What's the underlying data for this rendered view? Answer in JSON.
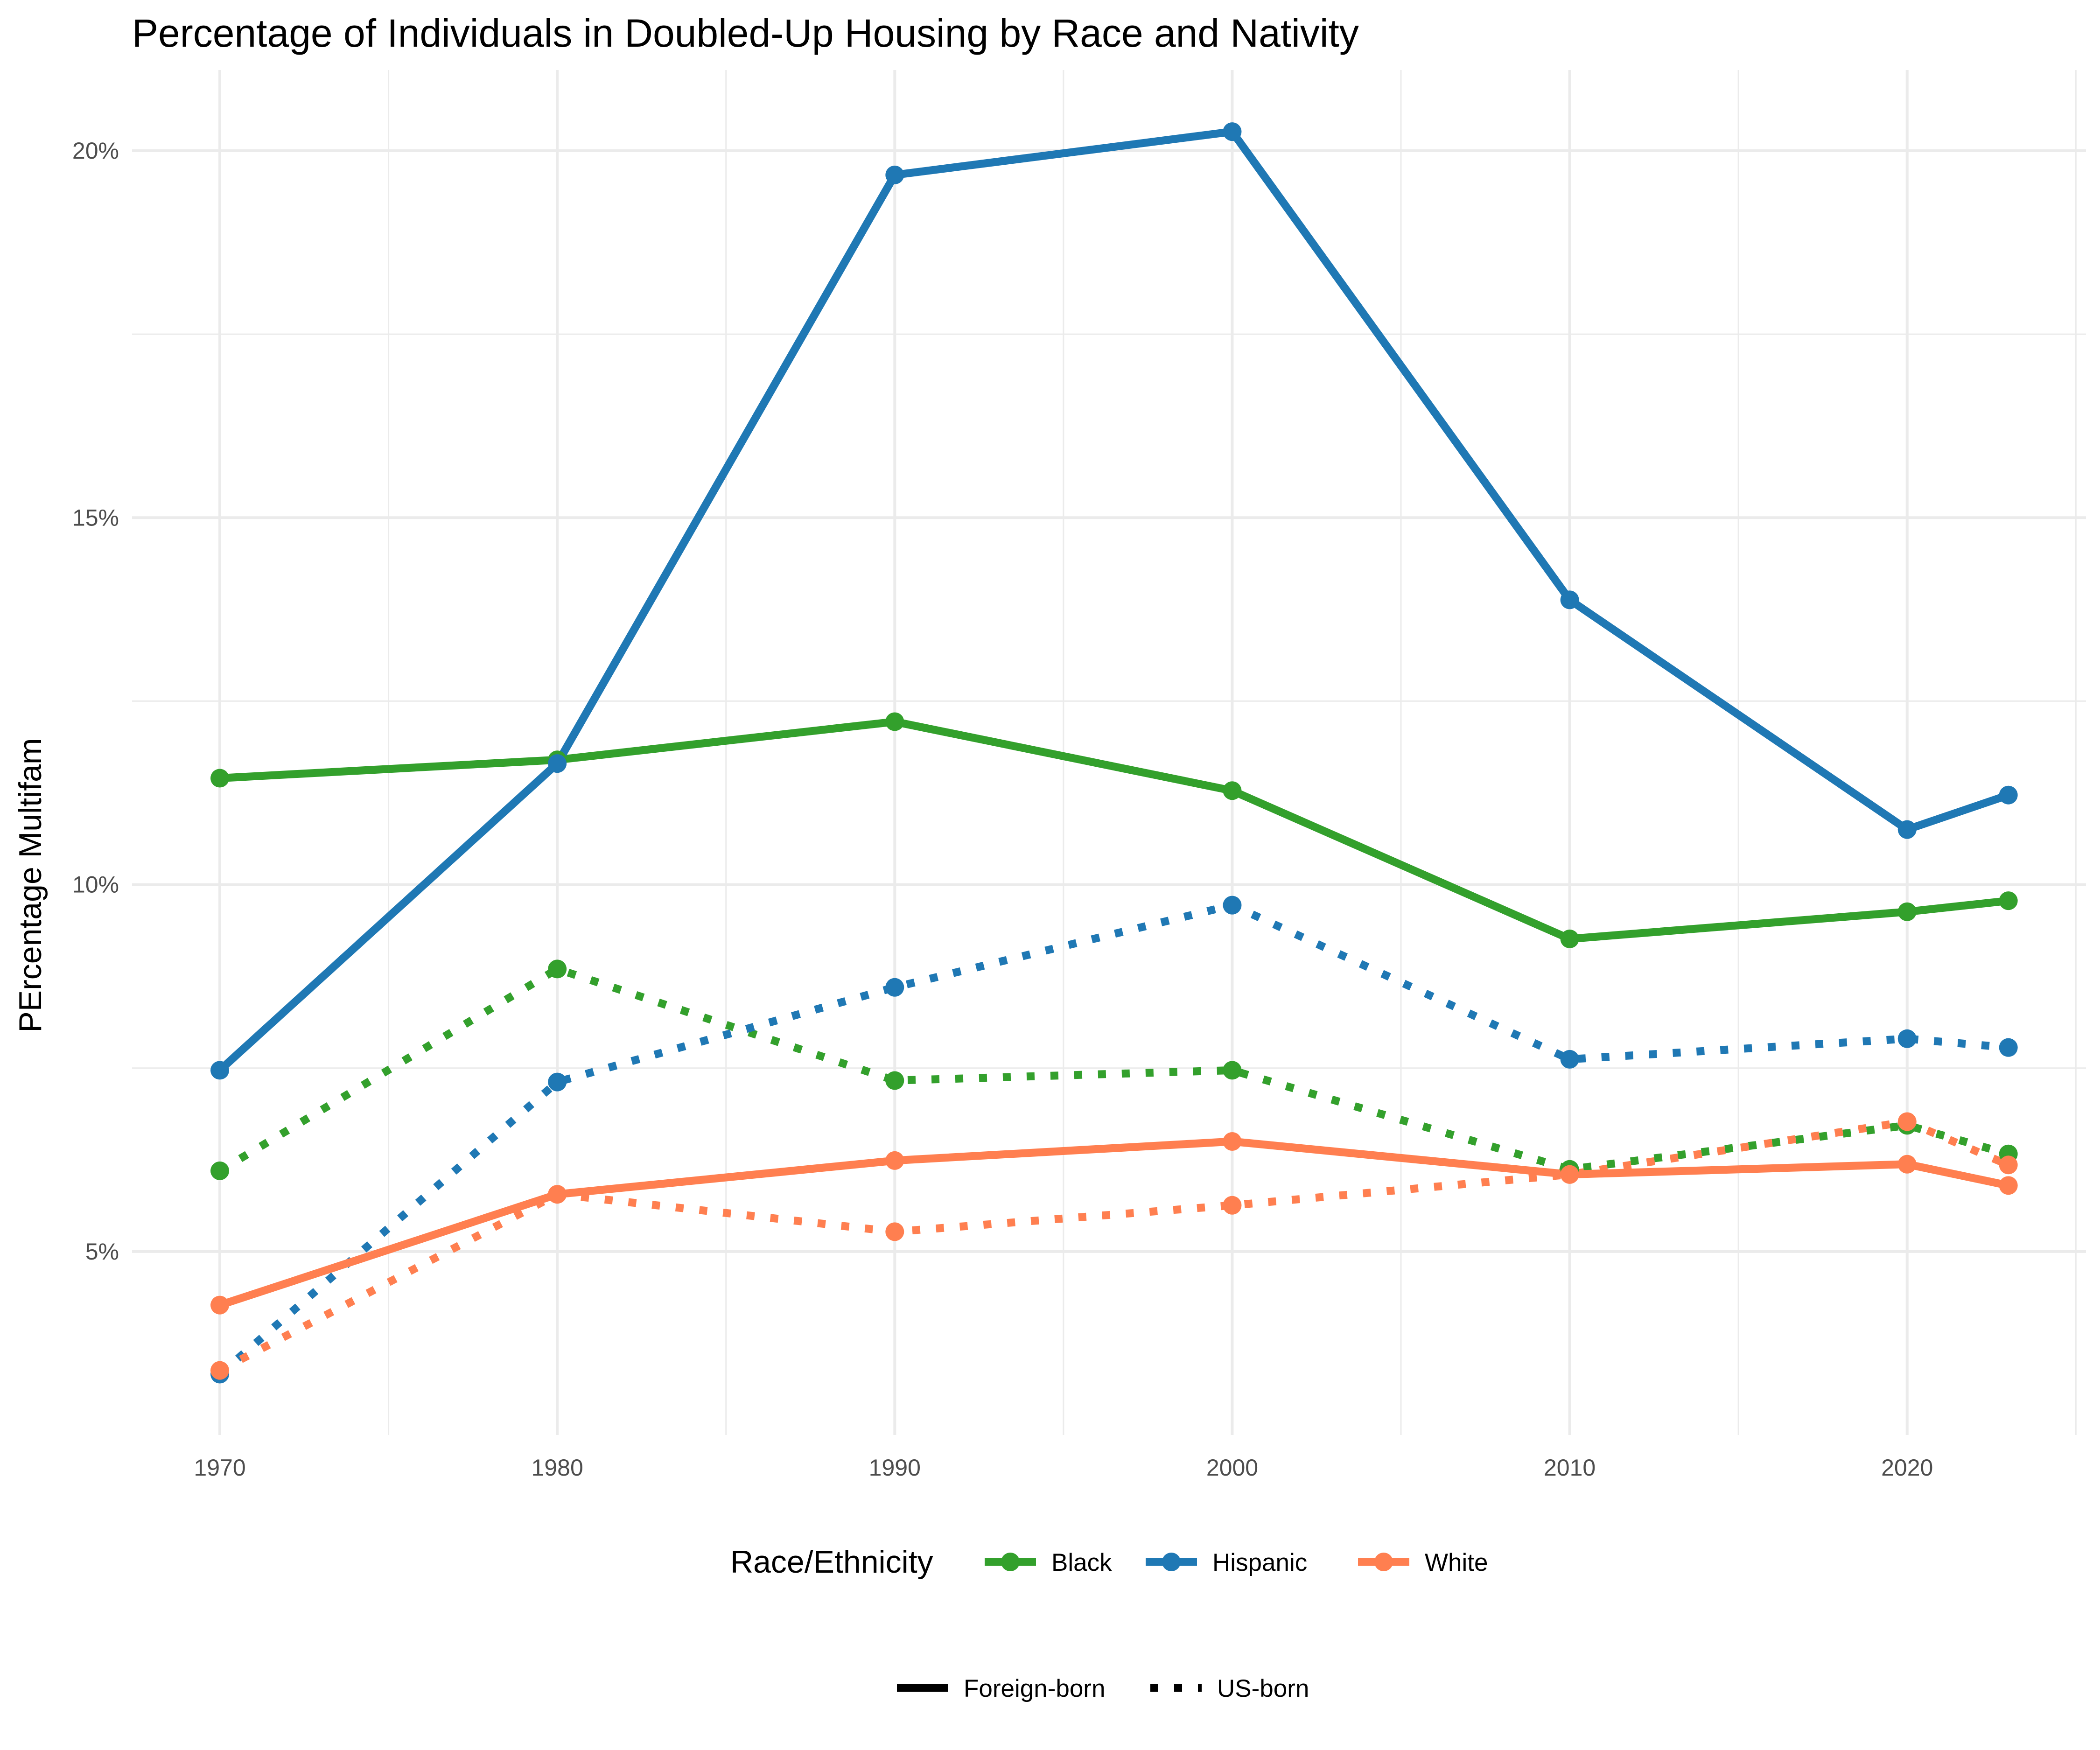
{
  "chart_data": {
    "type": "line",
    "title": "Percentage of Individuals in Doubled-Up Housing by Race and Nativity",
    "xlabel": "",
    "ylabel": "PErcentage Multifam",
    "x": [
      1970,
      1980,
      1990,
      2000,
      2010,
      2020,
      2023
    ],
    "xlim": [
      1967.4,
      2025.3
    ],
    "ylim": [
      2.5,
      21.1
    ],
    "x_ticks": [
      1970,
      1980,
      1990,
      2000,
      2010,
      2020
    ],
    "x_tick_labels": [
      "1970",
      "1980",
      "1990",
      "2000",
      "2010",
      "2020"
    ],
    "y_ticks": [
      5,
      10,
      15,
      20
    ],
    "y_tick_labels": [
      "5%",
      "10%",
      "15%",
      "20%"
    ],
    "grid": true,
    "legend_position": "bottom",
    "legend": {
      "color_title": "Race/Ethnicity",
      "color_entries": [
        {
          "label": "Black",
          "color": "#33a02c"
        },
        {
          "label": "Hispanic",
          "color": "#1f78b4"
        },
        {
          "label": "White",
          "color": "#ff7f50"
        }
      ],
      "linetype_entries": [
        {
          "label": "Foreign-born",
          "style": "solid"
        },
        {
          "label": "US-born",
          "style": "dotted"
        }
      ]
    },
    "series": [
      {
        "race": "Black",
        "nativity": "Foreign-born",
        "color": "#33a02c",
        "style": "solid",
        "values": [
          11.45,
          11.7,
          12.22,
          11.28,
          9.26,
          9.63,
          9.78
        ]
      },
      {
        "race": "Hispanic",
        "nativity": "Foreign-born",
        "color": "#1f78b4",
        "style": "solid",
        "values": [
          7.47,
          11.65,
          19.67,
          20.26,
          13.88,
          10.75,
          11.22
        ]
      },
      {
        "race": "White",
        "nativity": "Foreign-born",
        "color": "#ff7f50",
        "style": "solid",
        "values": [
          4.27,
          5.78,
          6.24,
          6.5,
          6.05,
          6.19,
          5.9
        ]
      },
      {
        "race": "Black",
        "nativity": "US-born",
        "color": "#33a02c",
        "style": "dotted",
        "values": [
          6.1,
          8.85,
          7.33,
          7.47,
          6.12,
          6.72,
          6.33
        ]
      },
      {
        "race": "Hispanic",
        "nativity": "US-born",
        "color": "#1f78b4",
        "style": "dotted",
        "values": [
          3.33,
          7.31,
          8.6,
          9.72,
          7.62,
          7.9,
          7.78
        ]
      },
      {
        "race": "White",
        "nativity": "US-born",
        "color": "#ff7f50",
        "style": "dotted",
        "values": [
          3.38,
          5.78,
          5.27,
          5.63,
          6.05,
          6.77,
          6.18
        ]
      }
    ]
  }
}
